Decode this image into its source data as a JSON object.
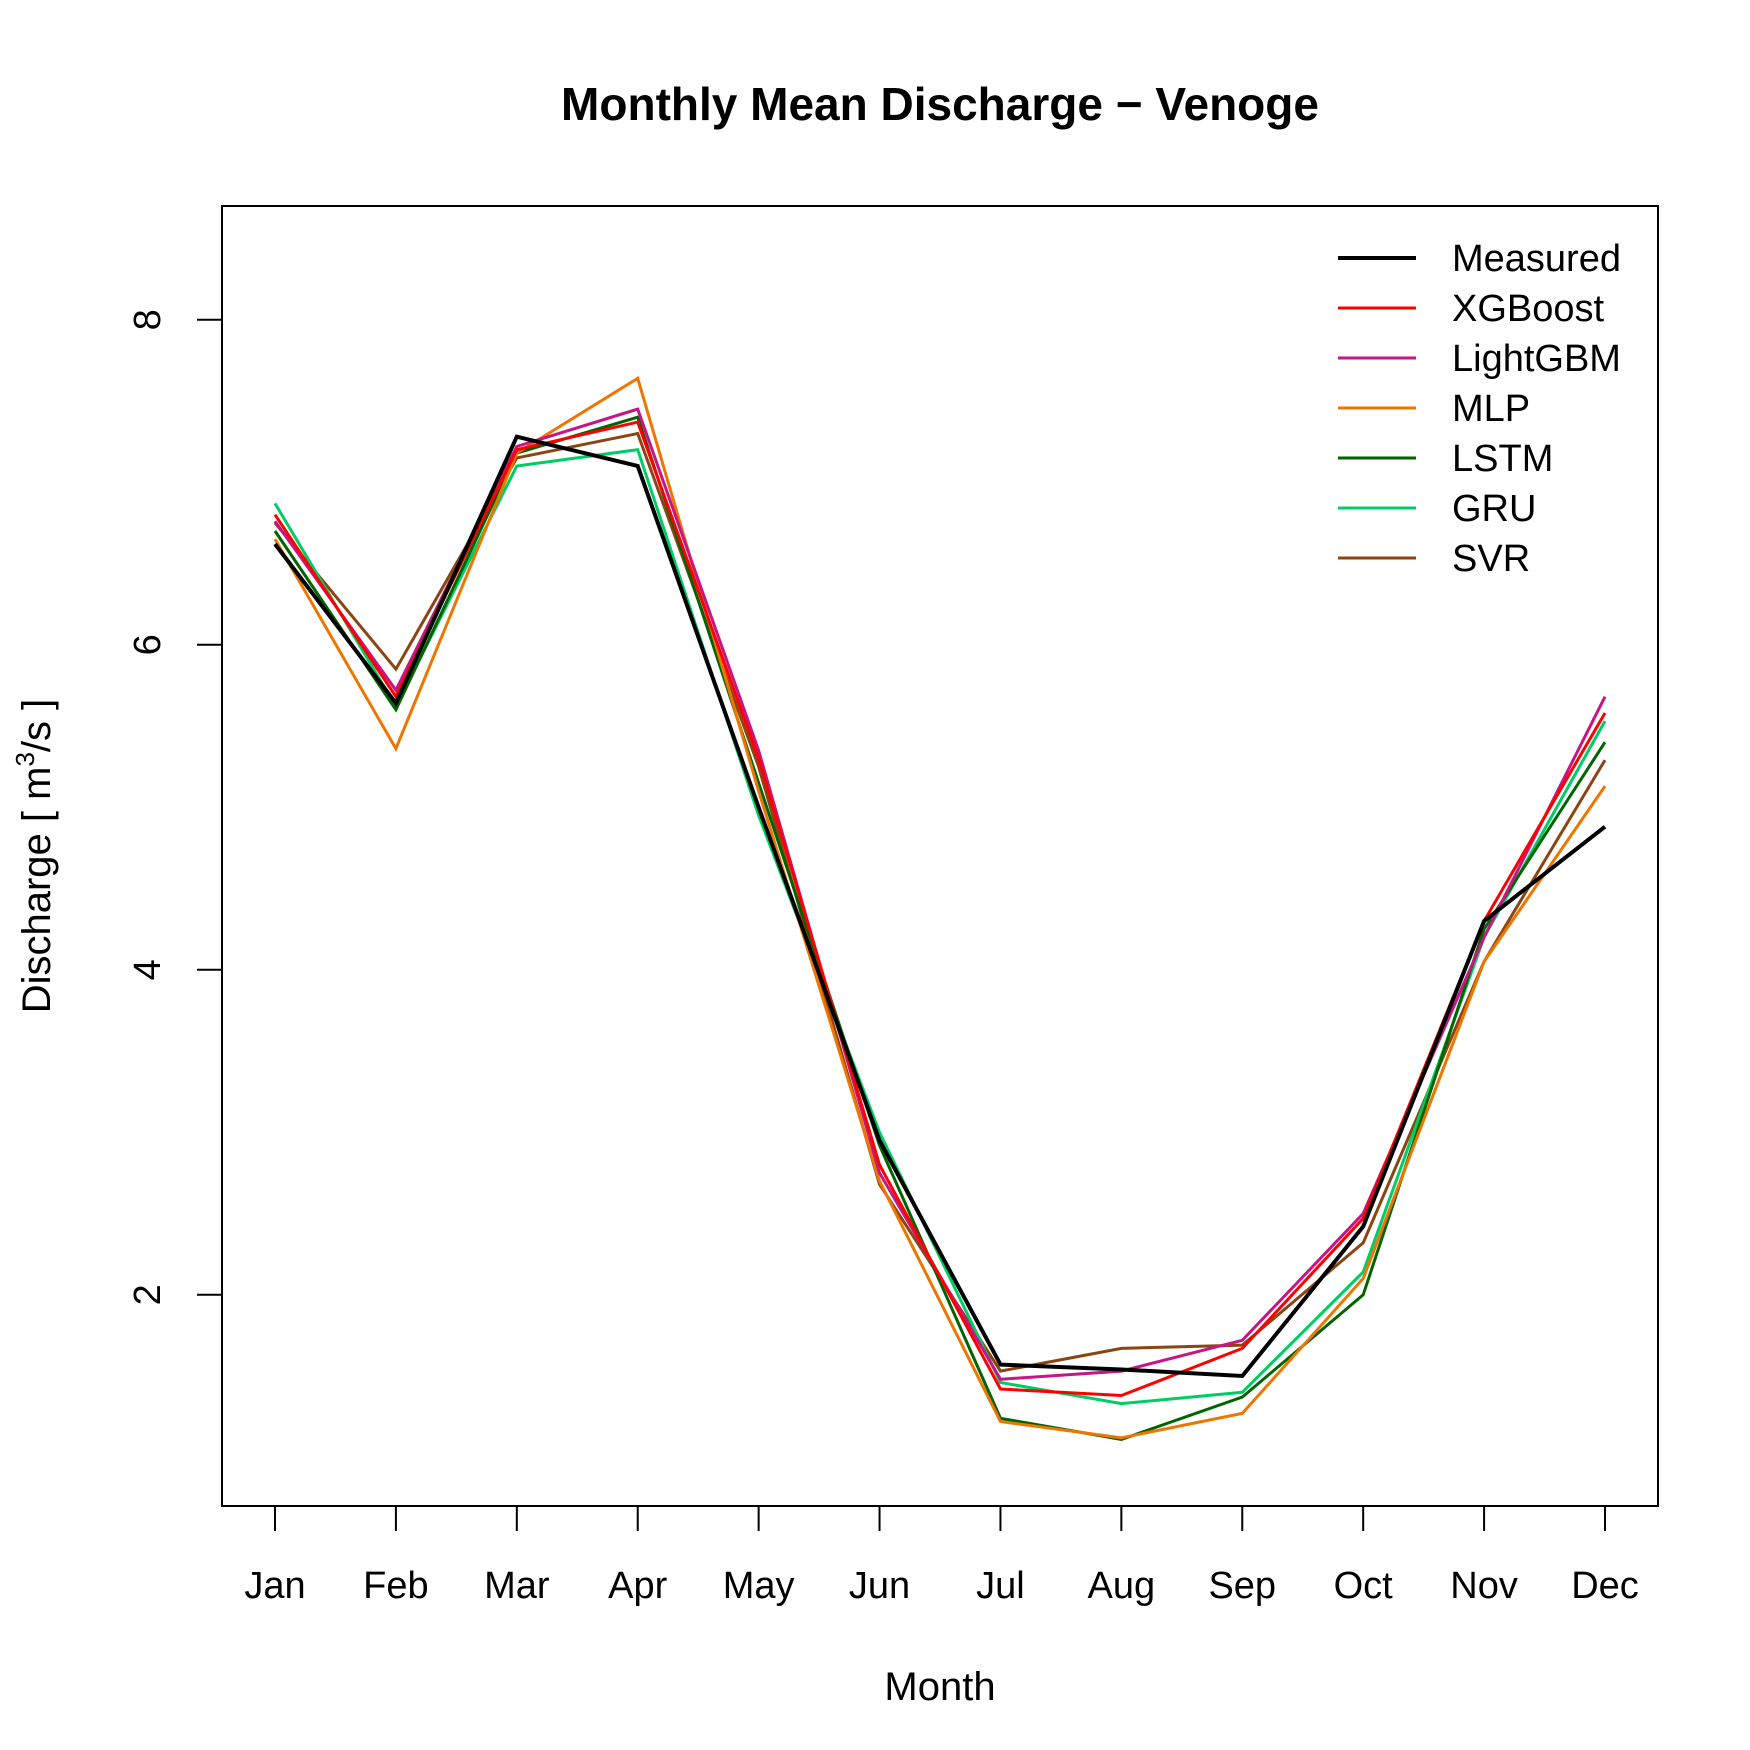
{
  "chart_data": {
    "type": "line",
    "title": "Monthly Mean Discharge − Venoge",
    "xlabel": "Month",
    "ylabel_main": "Discharge [ m",
    "ylabel_sup": "3",
    "ylabel_tail": "/s ]",
    "categories": [
      "Jan",
      "Feb",
      "Mar",
      "Apr",
      "May",
      "Jun",
      "Jul",
      "Aug",
      "Sep",
      "Oct",
      "Nov",
      "Dec"
    ],
    "yticks": [
      "2",
      "4",
      "6",
      "8"
    ],
    "ylim": [
      0.7,
      8.7
    ],
    "grid": false,
    "legend_position": "top-right",
    "series": [
      {
        "name": "Measured",
        "color": "#000000",
        "width": 4,
        "values": [
          6.62,
          5.64,
          7.28,
          7.1,
          5.0,
          2.95,
          1.57,
          1.54,
          1.5,
          2.42,
          4.3,
          4.88
        ]
      },
      {
        "name": "XGBoost",
        "color": "#ff0000",
        "width": 3,
        "values": [
          6.8,
          5.68,
          7.2,
          7.37,
          5.3,
          2.8,
          1.42,
          1.38,
          1.67,
          2.47,
          4.3,
          5.58
        ]
      },
      {
        "name": "LightGBM",
        "color": "#c71585",
        "width": 3,
        "values": [
          6.76,
          5.72,
          7.22,
          7.45,
          5.35,
          2.75,
          1.48,
          1.53,
          1.72,
          2.5,
          4.2,
          5.68
        ]
      },
      {
        "name": "MLP",
        "color": "#ee7600",
        "width": 3,
        "values": [
          6.65,
          5.36,
          7.18,
          7.64,
          5.1,
          2.7,
          1.22,
          1.12,
          1.27,
          2.1,
          4.05,
          5.13
        ]
      },
      {
        "name": "LSTM",
        "color": "#006400",
        "width": 3,
        "values": [
          6.7,
          5.6,
          7.18,
          7.4,
          5.15,
          2.92,
          1.24,
          1.11,
          1.37,
          2.0,
          4.25,
          5.4
        ]
      },
      {
        "name": "GRU",
        "color": "#00cd66",
        "width": 3,
        "values": [
          6.87,
          5.62,
          7.1,
          7.2,
          4.95,
          3.0,
          1.46,
          1.33,
          1.4,
          2.14,
          4.2,
          5.53
        ]
      },
      {
        "name": "SVR",
        "color": "#8b4513",
        "width": 3,
        "values": [
          6.75,
          5.85,
          7.15,
          7.3,
          5.25,
          2.68,
          1.53,
          1.67,
          1.69,
          2.32,
          4.05,
          5.29
        ]
      }
    ]
  }
}
